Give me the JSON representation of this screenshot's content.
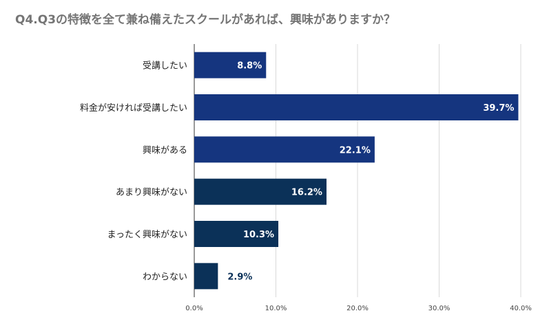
{
  "chart_data": {
    "type": "bar",
    "orientation": "horizontal",
    "title": "Q4.Q3の特徴を全て兼ね備えたスクールがあれば、興味がありますか？",
    "categories": [
      "受講したい",
      "料金が安ければ受講したい",
      "興味がある",
      "あまり興味がない",
      "まったく興味がない",
      "わからない"
    ],
    "values": [
      8.8,
      39.7,
      22.1,
      16.2,
      10.3,
      2.9
    ],
    "value_labels": [
      "8.8%",
      "39.7%",
      "22.1%",
      "16.2%",
      "10.3%",
      "2.9%"
    ],
    "bar_colors": [
      "#15357f",
      "#15357f",
      "#15357f",
      "#0b3158",
      "#0b3158",
      "#0b3158"
    ],
    "xlim": [
      0,
      40
    ],
    "x_ticks": [
      0,
      10,
      20,
      30,
      40
    ],
    "x_tick_labels": [
      "0.0%",
      "10.0%",
      "20.0%",
      "30.0%",
      "40.0%"
    ],
    "xlabel": "",
    "ylabel": "",
    "grid": true,
    "legend": "none"
  }
}
